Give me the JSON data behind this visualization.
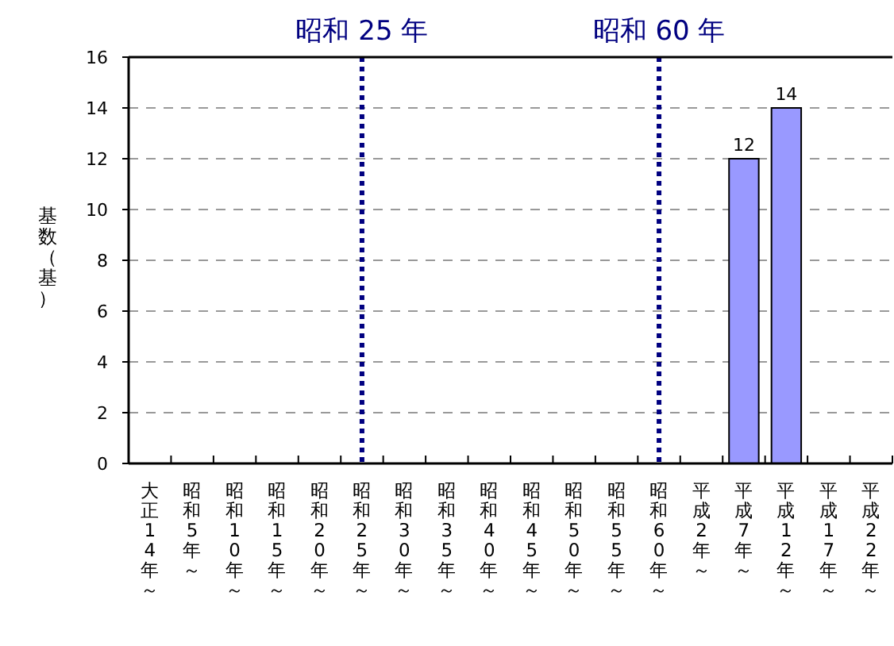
{
  "chart_data": {
    "type": "bar",
    "ylabel": "基数（基）",
    "categories": [
      "大正14年～",
      "昭和5年～",
      "昭和10年～",
      "昭和15年～",
      "昭和20年～",
      "昭和25年～",
      "昭和30年～",
      "昭和35年～",
      "昭和40年～",
      "昭和45年～",
      "昭和50年～",
      "昭和55年～",
      "昭和60年～",
      "平成2年～",
      "平成7年～",
      "平成12年～",
      "平成17年～",
      "平成22年～"
    ],
    "values": [
      null,
      null,
      null,
      null,
      null,
      null,
      null,
      null,
      null,
      null,
      null,
      null,
      null,
      null,
      12,
      14,
      null,
      null
    ],
    "value_labels": [
      null,
      null,
      null,
      null,
      null,
      null,
      null,
      null,
      null,
      null,
      null,
      null,
      null,
      null,
      "12",
      "14",
      null,
      null
    ],
    "color": "#9999ff",
    "ylim": [
      0,
      16
    ],
    "yticks": [
      0,
      2,
      4,
      6,
      8,
      10,
      12,
      14,
      16
    ],
    "grid": "y",
    "ref_lines": [
      {
        "axis": "x",
        "value": "昭和25年～",
        "label": "昭和 25 年",
        "color": "#000080",
        "line_style": "dotted"
      },
      {
        "axis": "x",
        "value": "昭和60年～",
        "label": "昭和 60 年",
        "color": "#000080",
        "line_style": "dotted"
      }
    ]
  }
}
